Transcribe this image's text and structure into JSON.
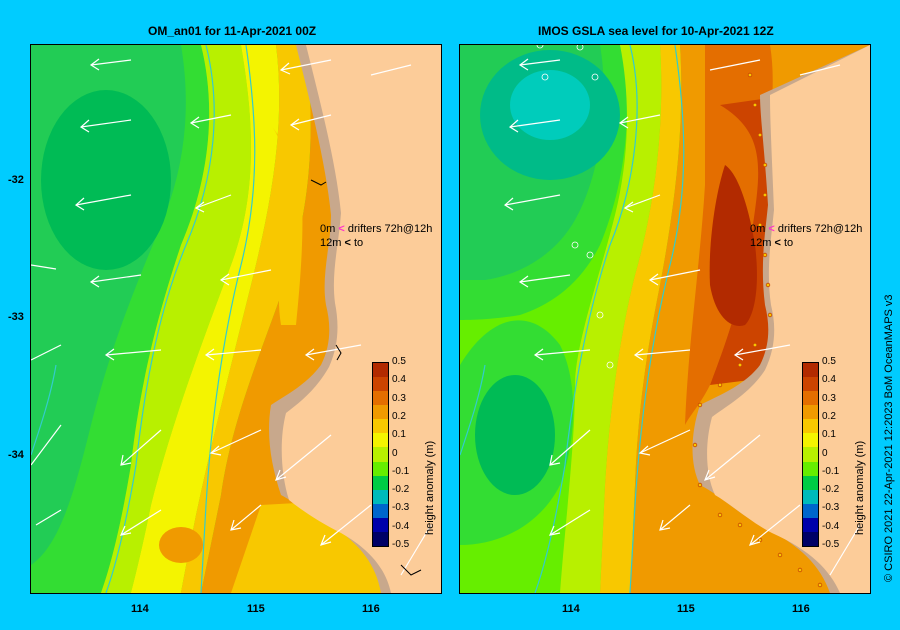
{
  "panels": [
    {
      "title": "OM_an01  for 11-Apr-2021 00Z",
      "type": "model"
    },
    {
      "title": "IMOS GSLA sea level   for 10-Apr-2021 12Z",
      "type": "observation"
    }
  ],
  "axes": {
    "x_ticks": [
      "114",
      "115",
      "116"
    ],
    "y_ticks": [
      "-32",
      "-33",
      "-34"
    ]
  },
  "legend": {
    "title": "height anomaly (m)",
    "labels": [
      "0.5",
      "0.4",
      "0.3",
      "0.2",
      "0.1",
      "0",
      "-0.1",
      "-0.2",
      "-0.3",
      "-0.4",
      "-0.5"
    ],
    "colors": [
      "#b22a00",
      "#cc4400",
      "#e46e00",
      "#f09a00",
      "#f8c800",
      "#f4f400",
      "#b8f000",
      "#66ee00",
      "#00cc44",
      "#00bbbb",
      "#0066cc",
      "#0000aa",
      "#000066"
    ]
  },
  "drifters": {
    "line1_depth": "0m",
    "line1_text": "drifters 72h@12h",
    "line2_depth": "12m",
    "line2_text": "to"
  },
  "credit": "© CSIRO 2021    22-Apr-2021 12:2023 BoM OceanMAPS v3",
  "colors": {
    "background": "#00ccff",
    "land": "#fccc99",
    "coast": "#c8a88c",
    "bathymetry": "#33cccc",
    "drifter_0m": "#ff33cc",
    "arrows": "#ffffff"
  }
}
